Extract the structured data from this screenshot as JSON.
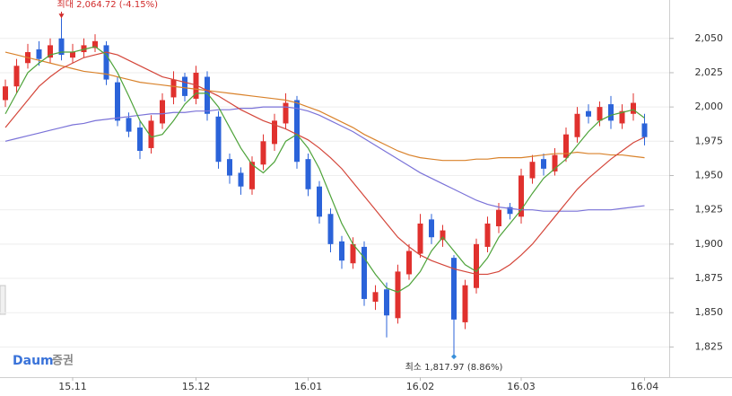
{
  "chart_data": {
    "type": "candlestick",
    "categories": [
      null,
      null,
      null,
      null,
      null,
      null,
      "15.11",
      null,
      null,
      null,
      null,
      null,
      null,
      null,
      null,
      null,
      null,
      "15.12",
      null,
      null,
      null,
      null,
      null,
      null,
      null,
      null,
      null,
      "16.01",
      null,
      null,
      null,
      null,
      null,
      null,
      null,
      null,
      null,
      "16.02",
      null,
      null,
      null,
      null,
      null,
      null,
      null,
      null,
      "16.03",
      null,
      null,
      null,
      null,
      null,
      null,
      null,
      null,
      null,
      null,
      "16.04"
    ],
    "open": [
      2005,
      2015,
      2032,
      2042,
      2036,
      2050,
      2036,
      2040,
      2043,
      2045,
      2018,
      1992,
      1985,
      1970,
      1988,
      2007,
      2022,
      2006,
      2022,
      1993,
      1962,
      1952,
      1940,
      1958,
      1973,
      1988,
      2005,
      1962,
      1942,
      1922,
      1902,
      1886,
      1898,
      1858,
      1867,
      1846,
      1878,
      1893,
      1918,
      1903,
      1890,
      1843,
      1868,
      1898,
      1913,
      1927,
      1920,
      1948,
      1962,
      1953,
      1963,
      1978,
      1997,
      1990,
      2002,
      1988,
      1995,
      1988
    ],
    "high": [
      2020,
      2035,
      2046,
      2048,
      2050,
      2064.72,
      2046,
      2050,
      2053,
      2048,
      2022,
      1996,
      1990,
      1994,
      2010,
      2026,
      2025,
      2030,
      2026,
      1997,
      1966,
      1956,
      1964,
      1980,
      1995,
      2010,
      2008,
      1966,
      1946,
      1926,
      1906,
      1905,
      1902,
      1870,
      1872,
      1885,
      1900,
      1922,
      1922,
      1914,
      1892,
      1874,
      1904,
      1920,
      1930,
      1930,
      1955,
      1965,
      1966,
      1970,
      1985,
      2000,
      2002,
      2004,
      2008,
      2002,
      2010,
      1995
    ],
    "low": [
      2000,
      2010,
      2028,
      2030,
      2032,
      2034,
      2032,
      2036,
      2040,
      2016,
      1986,
      1978,
      1962,
      1966,
      1984,
      2002,
      2004,
      2002,
      1990,
      1955,
      1944,
      1936,
      1936,
      1954,
      1968,
      1984,
      1955,
      1935,
      1915,
      1894,
      1882,
      1882,
      1855,
      1852,
      1832,
      1842,
      1874,
      1890,
      1900,
      1898,
      1817.97,
      1838,
      1864,
      1894,
      1908,
      1918,
      1915,
      1944,
      1950,
      1950,
      1960,
      1974,
      1988,
      1986,
      1984,
      1984,
      1990,
      1972
    ],
    "close": [
      2015,
      2030,
      2040,
      2035,
      2045,
      2038,
      2040,
      2045,
      2048,
      2020,
      1990,
      1982,
      1968,
      1990,
      2005,
      2020,
      2008,
      2025,
      1995,
      1960,
      1950,
      1942,
      1960,
      1975,
      1990,
      2003,
      1960,
      1940,
      1920,
      1900,
      1888,
      1900,
      1860,
      1865,
      1848,
      1880,
      1895,
      1915,
      1905,
      1910,
      1845,
      1870,
      1900,
      1915,
      1925,
      1922,
      1950,
      1960,
      1955,
      1965,
      1980,
      1995,
      1993,
      2000,
      1990,
      1997,
      2003,
      1978
    ],
    "up_color": "#e0312e",
    "down_color": "#2b63d9",
    "moving_averages": [
      {
        "color": "#7a72d8",
        "values": [
          1975,
          1977,
          1979,
          1981,
          1983,
          1985,
          1987,
          1988,
          1990,
          1991,
          1992,
          1993,
          1994,
          1995,
          1995,
          1996,
          1996,
          1997,
          1997,
          1998,
          1998,
          1999,
          1999,
          2000,
          2000,
          2000,
          1999,
          1997,
          1994,
          1990,
          1986,
          1982,
          1977,
          1972,
          1967,
          1962,
          1957,
          1952,
          1948,
          1944,
          1940,
          1936,
          1932,
          1929,
          1927,
          1926,
          1925,
          1925,
          1924,
          1924,
          1924,
          1924,
          1925,
          1925,
          1925,
          1926,
          1927,
          1928
        ]
      },
      {
        "color": "#d9822b",
        "values": [
          2040,
          2038,
          2036,
          2034,
          2032,
          2030,
          2028,
          2026,
          2025,
          2024,
          2022,
          2020,
          2018,
          2017,
          2016,
          2015,
          2014,
          2013,
          2012,
          2011,
          2010,
          2009,
          2008,
          2007,
          2006,
          2005,
          2003,
          2000,
          1997,
          1993,
          1989,
          1985,
          1980,
          1976,
          1972,
          1968,
          1965,
          1963,
          1962,
          1961,
          1961,
          1961,
          1962,
          1962,
          1963,
          1963,
          1963,
          1964,
          1965,
          1966,
          1966,
          1967,
          1966,
          1966,
          1965,
          1965,
          1964,
          1963
        ]
      },
      {
        "color": "#d4463a",
        "values": [
          1985,
          1995,
          2005,
          2015,
          2022,
          2028,
          2032,
          2036,
          2038,
          2040,
          2038,
          2034,
          2030,
          2026,
          2022,
          2020,
          2018,
          2016,
          2012,
          2008,
          2003,
          1998,
          1994,
          1990,
          1987,
          1984,
          1980,
          1976,
          1970,
          1963,
          1955,
          1945,
          1935,
          1925,
          1915,
          1905,
          1898,
          1892,
          1888,
          1885,
          1882,
          1880,
          1878,
          1878,
          1880,
          1885,
          1892,
          1900,
          1910,
          1920,
          1930,
          1940,
          1948,
          1955,
          1962,
          1968,
          1974,
          1978
        ]
      },
      {
        "color": "#4ea33a",
        "values": [
          1995,
          2010,
          2025,
          2032,
          2038,
          2040,
          2040,
          2042,
          2044,
          2038,
          2025,
          2008,
          1990,
          1978,
          1980,
          1990,
          2002,
          2010,
          2010,
          2000,
          1985,
          1970,
          1958,
          1952,
          1960,
          1975,
          1980,
          1970,
          1955,
          1935,
          1915,
          1900,
          1890,
          1878,
          1868,
          1865,
          1870,
          1880,
          1895,
          1905,
          1895,
          1885,
          1880,
          1890,
          1905,
          1915,
          1925,
          1937,
          1948,
          1955,
          1962,
          1972,
          1982,
          1990,
          1994,
          1996,
          1998,
          1992
        ]
      }
    ],
    "ylim": [
      1803,
      2078
    ],
    "yticks": [
      {
        "value": 1825,
        "label": "1,825"
      },
      {
        "value": 1850,
        "label": "1,850"
      },
      {
        "value": 1875,
        "label": "1,875"
      },
      {
        "value": 1900,
        "label": "1,900"
      },
      {
        "value": 1925,
        "label": "1,925"
      },
      {
        "value": 1950,
        "label": "1,950"
      },
      {
        "value": 1975,
        "label": "1,975"
      },
      {
        "value": 2000,
        "label": "2,000"
      },
      {
        "value": 2025,
        "label": "2,025"
      },
      {
        "value": 2050,
        "label": "2,050"
      }
    ],
    "grid": true,
    "max_annotation": {
      "text": "최대 2,064.72 (-4.15%)",
      "value": 2064.72,
      "color": "#d12b2b"
    },
    "min_annotation": {
      "text": "최소 1,817.97 (8.86%)",
      "value": 1817.97,
      "color": "#3a8fd9"
    },
    "logo": {
      "brand": "Daum",
      "service": "증권"
    }
  }
}
